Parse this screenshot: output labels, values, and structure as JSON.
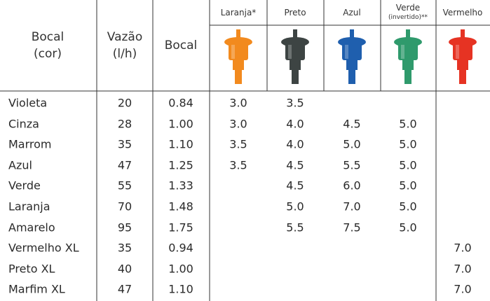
{
  "table": {
    "columns": [
      {
        "lines": [
          "Bocal",
          "(cor)"
        ]
      },
      {
        "lines": [
          "Vazão",
          "(l/h)"
        ]
      },
      {
        "lines": [
          "Bocal"
        ]
      },
      {
        "lines": [
          "Laranja*"
        ]
      },
      {
        "lines": [
          "Preto"
        ]
      },
      {
        "lines": [
          "Azul"
        ]
      },
      {
        "lines": [
          "Verde",
          "(invertido)**"
        ]
      },
      {
        "lines": [
          "Vermelho"
        ]
      }
    ],
    "rows": [
      [
        "Violeta",
        "20",
        "0.84",
        "3.0",
        "3.5",
        null,
        null,
        null
      ],
      [
        "Cinza",
        "28",
        "1.00",
        "3.0",
        "4.0",
        "4.5",
        "5.0",
        null
      ],
      [
        "Marrom",
        "35",
        "1.10",
        "3.5",
        "4.0",
        "5.0",
        "5.0",
        null
      ],
      [
        "Azul",
        "47",
        "1.25",
        "3.5",
        "4.5",
        "5.5",
        "5.0",
        null
      ],
      [
        "Verde",
        "55",
        "1.33",
        null,
        "4.5",
        "6.0",
        "5.0",
        null
      ],
      [
        "Laranja",
        "70",
        "1.48",
        null,
        "5.0",
        "7.0",
        "5.0",
        null
      ],
      [
        "Amarelo",
        "95",
        "1.75",
        null,
        "5.5",
        "7.5",
        "5.0",
        null
      ],
      [
        "Vermelho XL",
        "35",
        "0.94",
        null,
        null,
        null,
        null,
        "7.0"
      ],
      [
        "Preto XL",
        "40",
        "1.00",
        null,
        null,
        null,
        null,
        "7.0"
      ],
      [
        "Marfim XL",
        "47",
        "1.10",
        null,
        null,
        null,
        null,
        "7.0"
      ]
    ]
  }
}
